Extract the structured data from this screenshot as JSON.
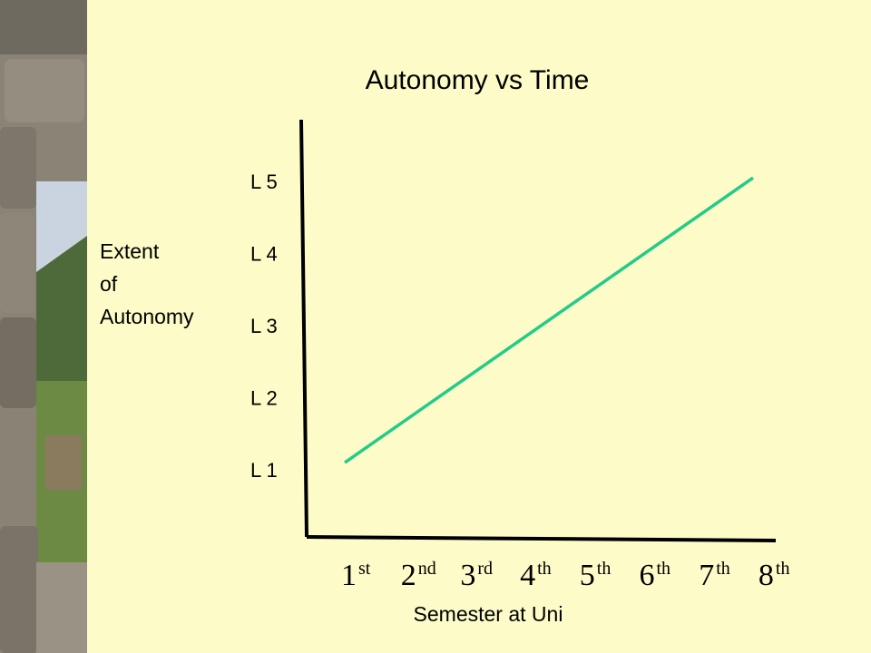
{
  "slide": {
    "background_color": "#fdfbc8",
    "photo_description_icon": "stone-wall-landscape-photo"
  },
  "chart_data": {
    "type": "line",
    "title": "Autonomy vs Time",
    "xlabel": "Semester at Uni",
    "ylabel_lines": [
      "Extent",
      "of",
      "Autonomy"
    ],
    "x_categories": [
      {
        "num": "1",
        "sup": "st"
      },
      {
        "num": "2",
        "sup": "nd"
      },
      {
        "num": "3",
        "sup": "rd"
      },
      {
        "num": "4",
        "sup": "th"
      },
      {
        "num": "5",
        "sup": "th"
      },
      {
        "num": "6",
        "sup": "th"
      },
      {
        "num": "7",
        "sup": "th"
      },
      {
        "num": "8",
        "sup": "th"
      }
    ],
    "y_ticks": [
      "L 1",
      "L 2",
      "L 3",
      "L 4",
      "L 5"
    ],
    "series": [
      {
        "color": "#22cc88",
        "points": [
          {
            "x": 1,
            "y": 1.1
          },
          {
            "x": 8,
            "y": 5.05
          }
        ]
      }
    ],
    "xlim": [
      1,
      8
    ],
    "ylim": [
      1,
      5
    ],
    "grid": false,
    "legend": "none"
  }
}
